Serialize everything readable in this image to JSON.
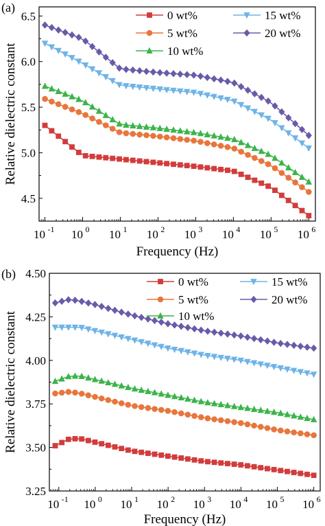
{
  "colors": {
    "0": "#d23c3c",
    "5": "#e8763c",
    "10": "#3cb44b",
    "15": "#6eb4e6",
    "20": "#6a5aa8"
  },
  "chart_data": [
    {
      "panel": "(a)",
      "type": "line",
      "xlabel": "Frequency (Hz)",
      "ylabel": "Relative dielectric constant",
      "xscale": "log",
      "xlim": [
        0.07,
        1500000
      ],
      "ylim": [
        4.25,
        6.6
      ],
      "yticks": [
        4.5,
        5.0,
        5.5,
        6.0,
        6.5
      ],
      "ytick_labels": [
        "4.5",
        "5.0",
        "5.5",
        "6.0",
        "6.5"
      ],
      "xtick_labels": [
        {
          "base": "10",
          "exp": "-1"
        },
        {
          "base": "10",
          "exp": "0"
        },
        {
          "base": "10",
          "exp": "1"
        },
        {
          "base": "10",
          "exp": "2"
        },
        {
          "base": "10",
          "exp": "3"
        },
        {
          "base": "10",
          "exp": "4"
        },
        {
          "base": "10",
          "exp": "5"
        },
        {
          "base": "10",
          "exp": "6"
        }
      ],
      "legend": "top-right",
      "log_x": [
        -1,
        0,
        1,
        2,
        3,
        4,
        5,
        6
      ],
      "series": [
        {
          "name": "0 wt%",
          "key": "0",
          "marker": "square",
          "values": [
            5.3,
            4.97,
            4.93,
            4.89,
            4.85,
            4.8,
            4.62,
            4.31
          ]
        },
        {
          "name": "5 wt%",
          "key": "5",
          "marker": "circle",
          "values": [
            5.59,
            5.43,
            5.22,
            5.18,
            5.13,
            5.05,
            4.86,
            4.57
          ]
        },
        {
          "name": "10 wt%",
          "key": "10",
          "marker": "triangle-up",
          "values": [
            5.73,
            5.57,
            5.31,
            5.27,
            5.22,
            5.15,
            4.97,
            4.68
          ]
        },
        {
          "name": "15 wt%",
          "key": "15",
          "marker": "triangle-down",
          "values": [
            6.2,
            5.98,
            5.74,
            5.7,
            5.66,
            5.57,
            5.36,
            5.05
          ]
        },
        {
          "name": "20 wt%",
          "key": "20",
          "marker": "diamond",
          "values": [
            6.4,
            6.25,
            5.92,
            5.88,
            5.85,
            5.77,
            5.55,
            5.19
          ]
        }
      ]
    },
    {
      "panel": "(b)",
      "type": "line",
      "xlabel": "Frequency (Hz)",
      "ylabel": "Relative dielectric constant",
      "xscale": "log",
      "xlim": [
        0.055,
        1500000
      ],
      "ylim": [
        3.25,
        4.5
      ],
      "yticks": [
        3.25,
        3.5,
        3.75,
        4.0,
        4.25,
        4.5
      ],
      "ytick_labels": [
        "3.25",
        "3.50",
        "3.75",
        "4.00",
        "4.25",
        "4.50"
      ],
      "xtick_labels": [
        {
          "base": "10",
          "exp": "-1"
        },
        {
          "base": "10",
          "exp": "0"
        },
        {
          "base": "10",
          "exp": "1"
        },
        {
          "base": "10",
          "exp": "2"
        },
        {
          "base": "10",
          "exp": "3"
        },
        {
          "base": "10",
          "exp": "4"
        },
        {
          "base": "10",
          "exp": "5"
        },
        {
          "base": "10",
          "exp": "6"
        }
      ],
      "legend": "top-right",
      "log_x": [
        -1.1,
        -0.7,
        -0.4,
        0,
        1,
        2,
        3,
        4,
        5,
        6
      ],
      "series": [
        {
          "name": "0 wt%",
          "key": "0",
          "marker": "square",
          "values": [
            3.51,
            3.55,
            3.55,
            3.53,
            3.48,
            3.45,
            3.42,
            3.4,
            3.37,
            3.34
          ]
        },
        {
          "name": "5 wt%",
          "key": "5",
          "marker": "circle",
          "values": [
            3.81,
            3.82,
            3.81,
            3.79,
            3.74,
            3.71,
            3.67,
            3.64,
            3.6,
            3.57
          ]
        },
        {
          "name": "10 wt%",
          "key": "10",
          "marker": "triangle-up",
          "values": [
            3.88,
            3.91,
            3.91,
            3.89,
            3.84,
            3.8,
            3.76,
            3.73,
            3.7,
            3.66
          ]
        },
        {
          "name": "15 wt%",
          "key": "15",
          "marker": "triangle-down",
          "values": [
            4.19,
            4.19,
            4.19,
            4.17,
            4.12,
            4.07,
            4.03,
            4.0,
            3.96,
            3.92
          ]
        },
        {
          "name": "20 wt%",
          "key": "20",
          "marker": "diamond",
          "values": [
            4.33,
            4.35,
            4.34,
            4.32,
            4.26,
            4.21,
            4.17,
            4.14,
            4.1,
            4.07
          ]
        }
      ]
    }
  ]
}
